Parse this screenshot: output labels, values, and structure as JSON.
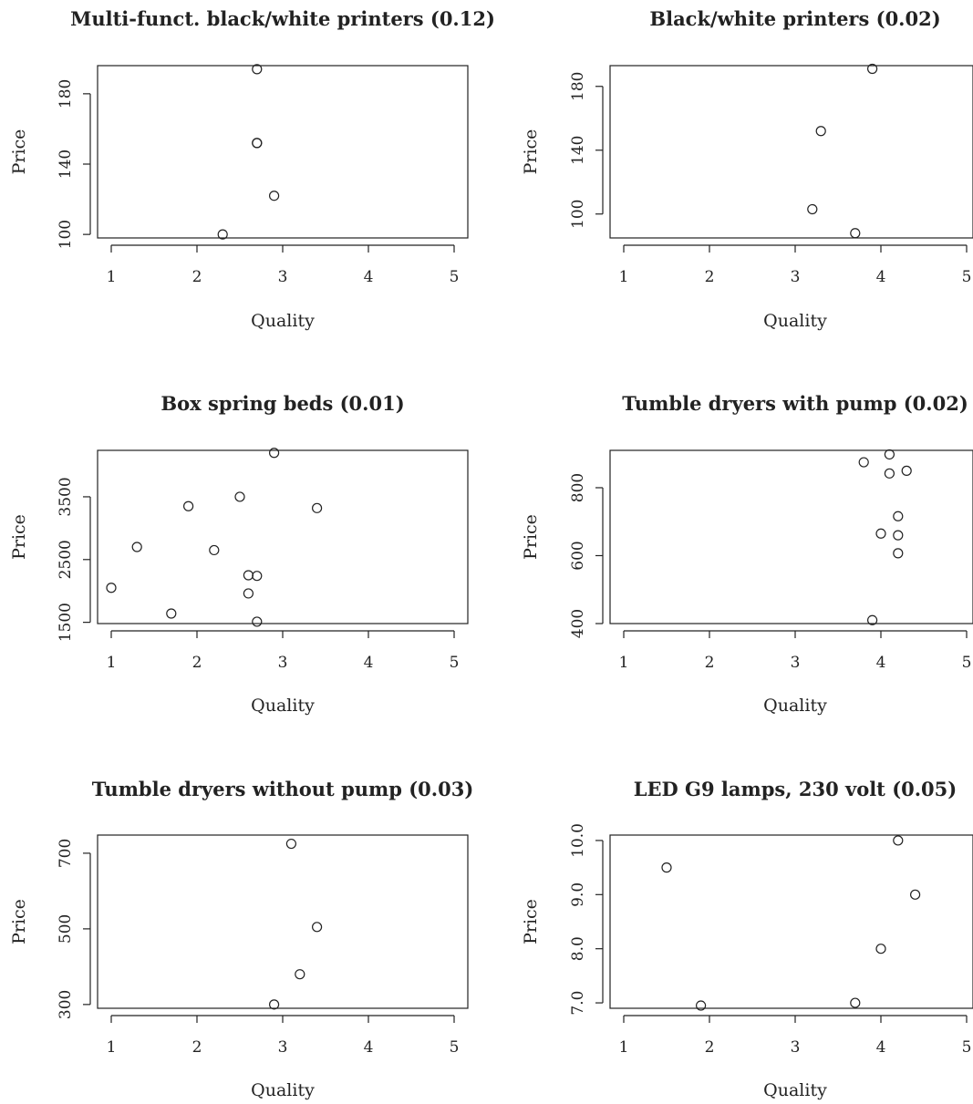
{
  "chart_data": [
    {
      "type": "scatter",
      "title": "Multi-funct. black/white printers (0.12)",
      "xlabel": "Quality",
      "ylabel": "Price",
      "xlim": [
        1,
        5
      ],
      "ylim": [
        98,
        196
      ],
      "xticks": [
        "1",
        "2",
        "3",
        "4",
        "5"
      ],
      "yticks": [
        "100",
        "140",
        "180"
      ],
      "x": [
        2.7,
        2.7,
        2.7,
        2.9,
        2.3
      ],
      "y": [
        194,
        152,
        152,
        122,
        100
      ]
    },
    {
      "type": "scatter",
      "title": "Black/white printers (0.02)",
      "xlabel": "Quality",
      "ylabel": "Price",
      "xlim": [
        1,
        5
      ],
      "ylim": [
        85,
        193
      ],
      "xticks": [
        "1",
        "2",
        "3",
        "4",
        "5"
      ],
      "yticks": [
        "100",
        "140",
        "180"
      ],
      "x": [
        3.9,
        3.3,
        3.2,
        3.7
      ],
      "y": [
        191,
        152,
        103,
        88
      ]
    },
    {
      "type": "scatter",
      "title": "Box spring beds (0.01)",
      "xlabel": "Quality",
      "ylabel": "Price",
      "xlim": [
        1,
        5
      ],
      "ylim": [
        1480,
        4240
      ],
      "xticks": [
        "1",
        "2",
        "3",
        "4",
        "5"
      ],
      "yticks": [
        "1500",
        "2500",
        "3500"
      ],
      "x": [
        2.9,
        2.5,
        1.9,
        3.4,
        1.3,
        2.2,
        2.6,
        2.7,
        1.0,
        2.6,
        1.7,
        2.7
      ],
      "y": [
        4200,
        3500,
        3350,
        3320,
        2700,
        2650,
        2250,
        2240,
        2050,
        1960,
        1640,
        1510
      ]
    },
    {
      "type": "scatter",
      "title": "Tumble dryers with pump (0.02)",
      "xlabel": "Quality",
      "ylabel": "Price",
      "xlim": [
        1,
        5
      ],
      "ylim": [
        400,
        910
      ],
      "xticks": [
        "1",
        "2",
        "3",
        "4",
        "5"
      ],
      "yticks": [
        "400",
        "600",
        "800"
      ],
      "x": [
        4.1,
        3.8,
        4.1,
        4.3,
        4.2,
        4.0,
        4.2,
        4.2,
        3.9
      ],
      "y": [
        898,
        875,
        842,
        850,
        716,
        665,
        660,
        607,
        410
      ]
    },
    {
      "type": "scatter",
      "title": "Tumble dryers without pump (0.03)",
      "xlabel": "Quality",
      "ylabel": "Price",
      "xlim": [
        1,
        5
      ],
      "ylim": [
        290,
        748
      ],
      "xticks": [
        "1",
        "2",
        "3",
        "4",
        "5"
      ],
      "yticks": [
        "300",
        "500",
        "700"
      ],
      "x": [
        3.1,
        3.4,
        3.2,
        2.9
      ],
      "y": [
        725,
        505,
        380,
        300
      ]
    },
    {
      "type": "scatter",
      "title": "LED G9 lamps, 230 volt (0.05)",
      "xlabel": "Quality",
      "ylabel": "Price",
      "xlim": [
        1,
        5
      ],
      "ylim": [
        6.9,
        10.1
      ],
      "xticks": [
        "1",
        "2",
        "3",
        "4",
        "5"
      ],
      "yticks": [
        "7.0",
        "8.0",
        "9.0",
        "10.0"
      ],
      "x": [
        4.2,
        1.5,
        4.4,
        4.0,
        3.7,
        1.9
      ],
      "y": [
        10.0,
        9.5,
        9.0,
        8.0,
        7.0,
        6.95
      ]
    }
  ]
}
